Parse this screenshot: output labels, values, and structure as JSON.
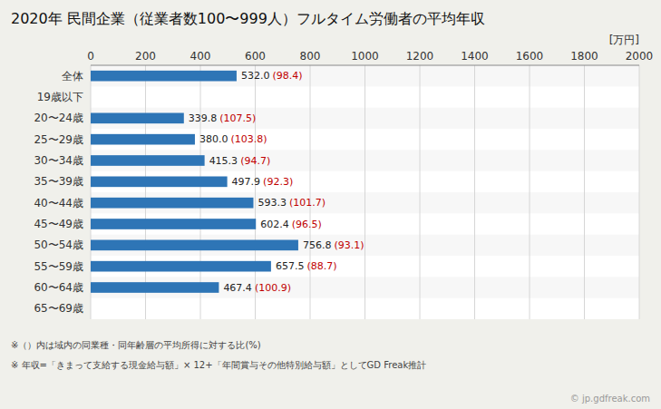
{
  "chart_data": {
    "type": "bar",
    "orientation": "horizontal",
    "title": "2020年 民間企業（従業者数100〜999人）フルタイム労働者の平均年収",
    "x_label": "[万円]",
    "categories": [
      "全体",
      "19歳以下",
      "20〜24歳",
      "25〜29歳",
      "30〜34歳",
      "35〜39歳",
      "40〜44歳",
      "45〜49歳",
      "50〜54歳",
      "55〜59歳",
      "60〜64歳",
      "65〜69歳"
    ],
    "values": [
      532.0,
      null,
      339.8,
      380.0,
      415.3,
      497.9,
      593.3,
      602.4,
      756.8,
      657.5,
      467.4,
      null
    ],
    "value_labels": [
      "532.0",
      null,
      "339.8",
      "380.0",
      "415.3",
      "497.9",
      "593.3",
      "602.4",
      "756.8",
      "657.5",
      "467.4",
      null
    ],
    "ratio_labels": [
      "(98.4)",
      null,
      "(107.5)",
      "(103.8)",
      "(94.7)",
      "(92.3)",
      "(101.7)",
      "(96.5)",
      "(93.1)",
      "(88.7)",
      "(100.9)",
      null
    ],
    "data_labels": true,
    "color": "#2e75b6",
    "xlim": [
      0,
      2000
    ],
    "xticks": [
      0,
      200,
      400,
      600,
      800,
      1000,
      1200,
      1400,
      1600,
      1800,
      2000
    ],
    "grid": true,
    "notes": [
      "※（）内は域内の同業種・同年齢層の平均所得に対する比(%)",
      "※ 年収=「きまって支給する現金給与額」× 12+「年間賞与その他特別給与額」としてGD Freak推計"
    ],
    "watermark": "© jp.gdfreak.com"
  }
}
